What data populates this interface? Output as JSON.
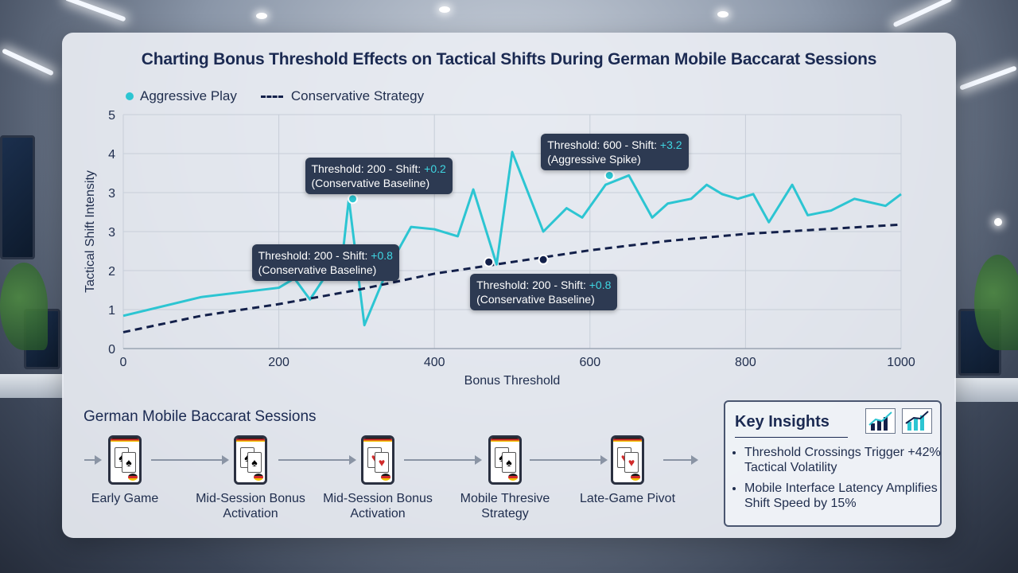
{
  "title": "Charting Bonus Threshold Effects on Tactical Shifts During German Mobile Baccarat Sessions",
  "chart_data": {
    "type": "line",
    "xlabel": "Bonus Threshold",
    "ylabel": "Tactical Shift Intensity",
    "xlim": [
      0,
      1000
    ],
    "ylim": [
      0,
      5
    ],
    "x_ticks": [
      "0",
      "200",
      "400",
      "600",
      "800",
      "1000"
    ],
    "y_ticks": [
      "0",
      "1",
      "2",
      "3",
      "3",
      "4",
      "5"
    ],
    "legend_position": "top-left",
    "grid": true,
    "series": [
      {
        "name": "Aggressive Play",
        "style": "solid",
        "color": "#2cc5d2",
        "x": [
          0,
          100,
          200,
          220,
          240,
          260,
          280,
          290,
          310,
          340,
          370,
          400,
          430,
          450,
          480,
          500,
          540,
          570,
          590,
          620,
          650,
          680,
          700,
          730,
          750,
          770,
          790,
          810,
          830,
          860,
          880,
          910,
          940,
          980,
          1000
        ],
        "y": [
          0.7,
          1.1,
          1.3,
          1.5,
          1.05,
          1.55,
          1.7,
          3.2,
          0.5,
          1.7,
          2.6,
          2.55,
          2.4,
          3.4,
          1.8,
          4.2,
          2.5,
          3.0,
          2.8,
          3.5,
          3.7,
          2.8,
          3.1,
          3.2,
          3.5,
          3.3,
          3.2,
          3.3,
          2.7,
          3.5,
          2.85,
          2.95,
          3.2,
          3.05,
          3.3
        ]
      },
      {
        "name": "Conservative Strategy",
        "style": "dashed",
        "color": "#13204a",
        "x": [
          0,
          100,
          200,
          300,
          400,
          500,
          600,
          700,
          800,
          900,
          1000
        ],
        "y": [
          0.35,
          0.7,
          0.95,
          1.25,
          1.6,
          1.85,
          2.1,
          2.3,
          2.45,
          2.55,
          2.65
        ]
      }
    ],
    "annotations": [
      {
        "label": "Threshold: 600 - Shift: ",
        "value": "+3.2",
        "note": "(Aggressive Spike)",
        "x": 625,
        "y": 3.7
      },
      {
        "label": "Threshold: 200 - Shift: ",
        "value": "+0.2",
        "note": "(Conservative Baseline)",
        "x": 295,
        "y": 3.2
      },
      {
        "label": "Threshold: 200 - Shift: ",
        "value": "+0.8",
        "note": "(Conservative Baseline)",
        "x": 470,
        "y": 1.85
      },
      {
        "label": "Threshold: 200 - Shift: ",
        "value": "+0.8",
        "note": "(Conservative Baseline)",
        "x": 540,
        "y": 1.9
      }
    ]
  },
  "sessions": {
    "title": "German Mobile Baccarat Sessions",
    "steps": [
      {
        "label": "Early Game"
      },
      {
        "label": "Mid-Session Bonus Activation"
      },
      {
        "label": "Mid-Session Bonus Activation"
      },
      {
        "label": "Mobile Thresive Strategy"
      },
      {
        "label": "Late-Game Pivot"
      }
    ]
  },
  "insights": {
    "title": "Key Insights",
    "items": [
      "Threshold Crossings Trigger +42% Tactical Volatility",
      "Mobile Interface Latency Amplifies Shift Speed by 15%"
    ]
  }
}
